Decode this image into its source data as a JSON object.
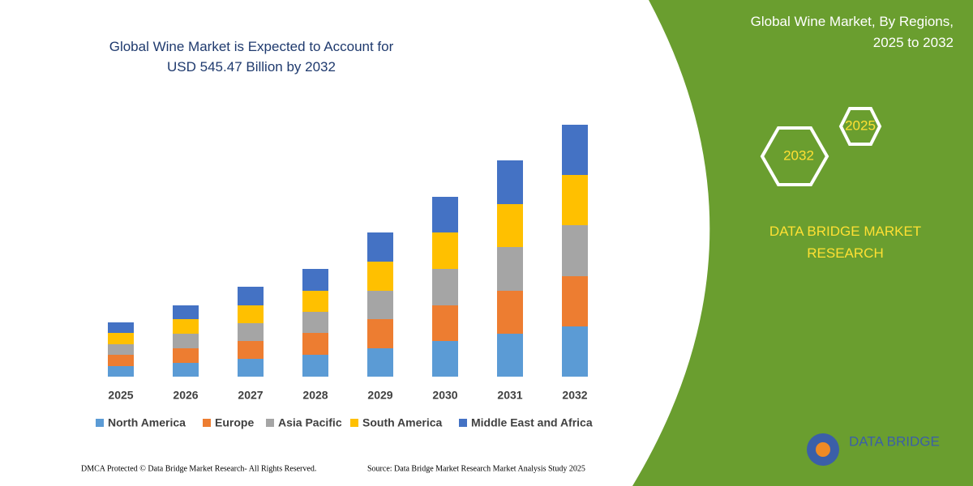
{
  "chart_data": {
    "type": "stacked_bar",
    "title": "Global Wine Market is Expected to Account for USD 545.47 Billion by 2032",
    "categories": [
      "2025",
      "2026",
      "2027",
      "2028",
      "2029",
      "2030",
      "2031",
      "2032"
    ],
    "series": [
      {
        "name": "North America",
        "color": "#5b9bd5",
        "values": [
          13,
          17,
          22,
          27,
          35,
          44,
          53,
          62
        ]
      },
      {
        "name": "Europe",
        "color": "#ed7d31",
        "values": [
          14,
          18,
          22,
          27,
          36,
          44,
          53,
          62
        ]
      },
      {
        "name": "Asia Pacific",
        "color": "#a5a5a5",
        "values": [
          13,
          18,
          22,
          26,
          35,
          45,
          54,
          63
        ]
      },
      {
        "name": "South America",
        "color": "#ffc000",
        "values": [
          14,
          18,
          22,
          26,
          36,
          45,
          53,
          62
        ]
      },
      {
        "name": "Middle East and Africa",
        "color": "#4472c4",
        "values": [
          13,
          17,
          23,
          27,
          36,
          44,
          54,
          62
        ]
      }
    ],
    "ylim": [
      0,
      310
    ]
  },
  "panel": {
    "title": "Global Wine Market, By Regions, 2025 to 2032",
    "hex_small": "2025",
    "hex_large": "2032",
    "brand": "DATA BRIDGE MARKET RESEARCH",
    "logo": "DATA BRIDGE"
  },
  "footer": {
    "copyright": "DMCA Protected © Data Bridge Market Research- All Rights Reserved.",
    "source": "Source: Data Bridge Market Research  Market Analysis Study 2025"
  }
}
